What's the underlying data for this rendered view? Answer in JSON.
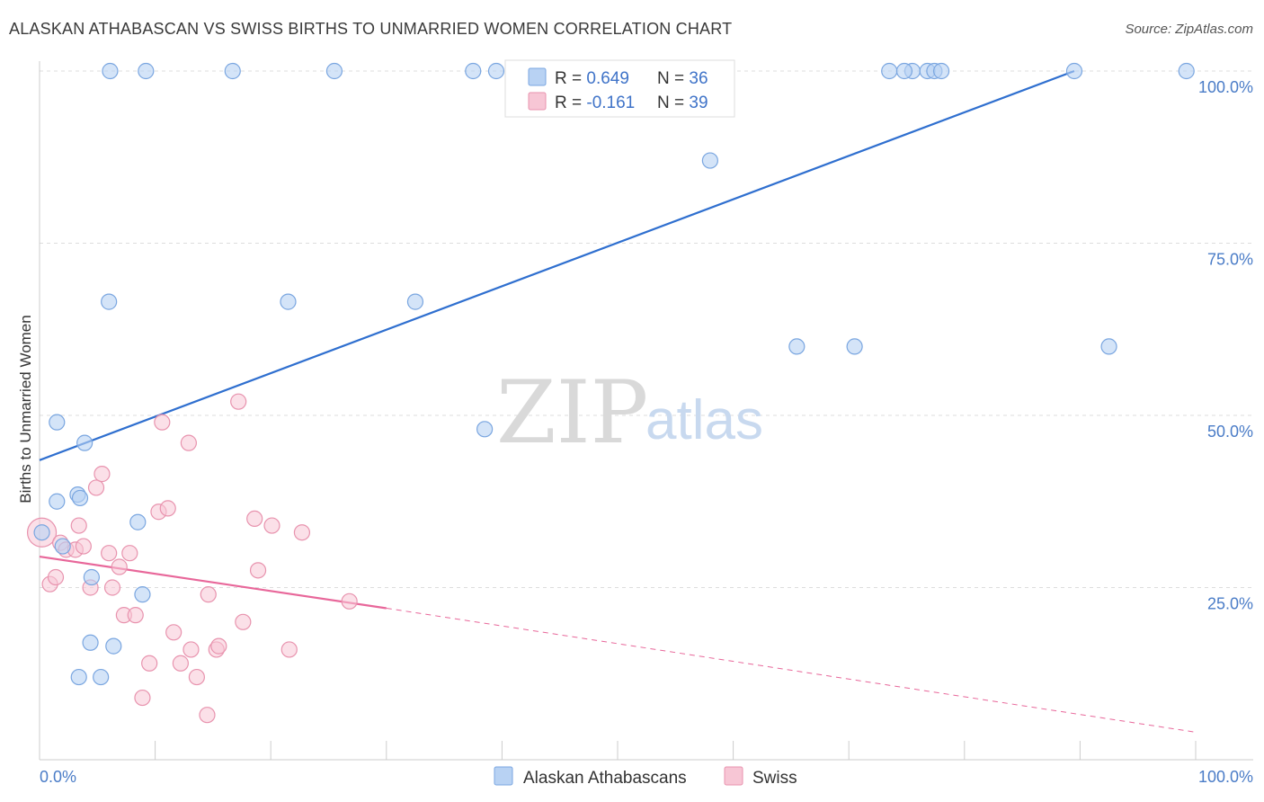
{
  "title": "ALASKAN ATHABASCAN VS SWISS BIRTHS TO UNMARRIED WOMEN CORRELATION CHART",
  "source": "Source: ZipAtlas.com",
  "watermark": {
    "zip": "ZIP",
    "atlas": "atlas"
  },
  "colors": {
    "blue_fill": "#b8d2f3",
    "blue_stroke": "#7aa6e0",
    "blue_line": "#2f6fcf",
    "pink_fill": "#f7c6d5",
    "pink_stroke": "#e893ae",
    "pink_line": "#e8679a",
    "grid": "#dddddd",
    "tick_text": "#4a7cc7"
  },
  "legend": {
    "rows": [
      {
        "r_label": "R = ",
        "r_value": "0.649",
        "n_label": "N = ",
        "n_value": "36"
      },
      {
        "r_label": "R = ",
        "r_value": "-0.161",
        "n_label": "N = ",
        "n_value": "39"
      }
    ]
  },
  "chart_data": {
    "type": "scatter",
    "title": "ALASKAN ATHABASCAN VS SWISS BIRTHS TO UNMARRIED WOMEN CORRELATION CHART",
    "xlabel": "",
    "ylabel": "Births to Unmarried Women",
    "xlim": [
      0,
      100
    ],
    "ylim": [
      0,
      104
    ],
    "x_tick_labels": {
      "left": "0.0%",
      "right": "100.0%"
    },
    "y_ticks": [
      {
        "value": 25,
        "label": "25.0%"
      },
      {
        "value": 50,
        "label": "50.0%"
      },
      {
        "value": 75,
        "label": "75.0%"
      },
      {
        "value": 100,
        "label": "100.0%"
      }
    ],
    "series": [
      {
        "name": "Alaskan Athabascans",
        "trend": {
          "x0": 0,
          "y0": 43.5,
          "x1": 89.5,
          "y1": 100
        },
        "points": [
          [
            0.2,
            33
          ],
          [
            1.5,
            37.5
          ],
          [
            1.5,
            49
          ],
          [
            2,
            31
          ],
          [
            3.3,
            38.5
          ],
          [
            3.5,
            38
          ],
          [
            3.4,
            12
          ],
          [
            3.9,
            46
          ],
          [
            4.4,
            17
          ],
          [
            4.5,
            26.5
          ],
          [
            5.3,
            12
          ],
          [
            6,
            66.5
          ],
          [
            6.1,
            100
          ],
          [
            6.4,
            16.5
          ],
          [
            8.5,
            34.5
          ],
          [
            8.9,
            24
          ],
          [
            9.2,
            100
          ],
          [
            16.7,
            100
          ],
          [
            21.5,
            66.5
          ],
          [
            25.5,
            100
          ],
          [
            32.5,
            66.5
          ],
          [
            37.5,
            100
          ],
          [
            38.5,
            48
          ],
          [
            39.5,
            100
          ],
          [
            58,
            87
          ],
          [
            65.5,
            60
          ],
          [
            70.5,
            60
          ],
          [
            75.5,
            100
          ],
          [
            73.5,
            100
          ],
          [
            74.8,
            100
          ],
          [
            76.8,
            100
          ],
          [
            77.4,
            100
          ],
          [
            78,
            100
          ],
          [
            89.5,
            100
          ],
          [
            92.5,
            60
          ],
          [
            99.2,
            100
          ]
        ]
      },
      {
        "name": "Swiss",
        "trend": {
          "x0": 0,
          "y0": 29.5,
          "x1": 30,
          "y1": 22,
          "dash_to_x": 100,
          "dash_to_y": 4
        },
        "points": [
          [
            0.2,
            33
          ],
          [
            0.9,
            25.5
          ],
          [
            1.4,
            26.5
          ],
          [
            1.8,
            31.5
          ],
          [
            2.3,
            30.5
          ],
          [
            3.1,
            30.5
          ],
          [
            3.4,
            34
          ],
          [
            3.8,
            31
          ],
          [
            4.4,
            25
          ],
          [
            4.9,
            39.5
          ],
          [
            5.4,
            41.5
          ],
          [
            6,
            30
          ],
          [
            6.3,
            25
          ],
          [
            6.9,
            28
          ],
          [
            7.3,
            21
          ],
          [
            7.8,
            30
          ],
          [
            8.3,
            21
          ],
          [
            8.9,
            9
          ],
          [
            9.5,
            14
          ],
          [
            10.3,
            36
          ],
          [
            10.6,
            49
          ],
          [
            11.1,
            36.5
          ],
          [
            11.6,
            18.5
          ],
          [
            12.2,
            14
          ],
          [
            12.9,
            46
          ],
          [
            13.1,
            16
          ],
          [
            13.6,
            12
          ],
          [
            14.5,
            6.5
          ],
          [
            14.6,
            24
          ],
          [
            15.3,
            16
          ],
          [
            15.5,
            16.5
          ],
          [
            17.2,
            52
          ],
          [
            17.6,
            20
          ],
          [
            18.6,
            35
          ],
          [
            18.9,
            27.5
          ],
          [
            20.1,
            34
          ],
          [
            21.6,
            16
          ],
          [
            22.7,
            33
          ],
          [
            26.8,
            23
          ]
        ]
      }
    ]
  },
  "bottom_legend": {
    "items": [
      {
        "label": "Alaskan Athabascans"
      },
      {
        "label": "Swiss"
      }
    ]
  }
}
